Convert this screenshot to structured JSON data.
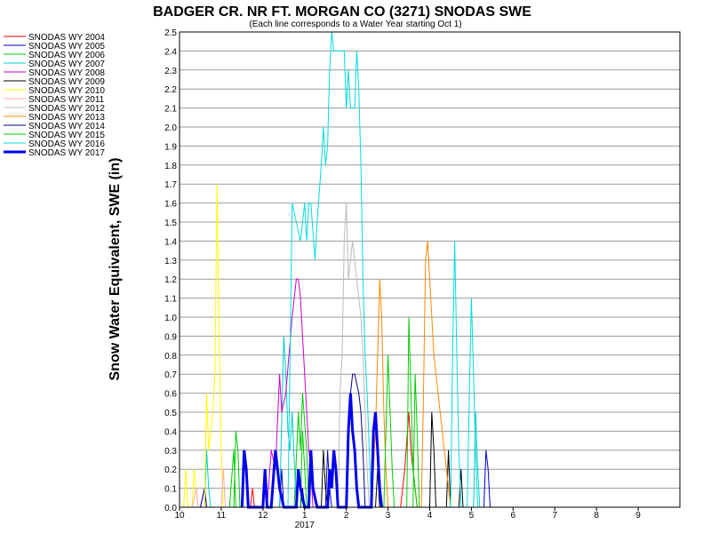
{
  "chart_data": {
    "type": "line",
    "title": "BADGER CR. NR FT. MORGAN CO (3271) SNODAS SWE",
    "subtitle": "(Each line corresponds to a Water Year starting Oct 1)",
    "xlabel": "",
    "ylabel": "Snow Water Equivalent, SWE (in)",
    "ylim": [
      0,
      2.5
    ],
    "yticks": [
      "0.0",
      "0.1",
      "0.2",
      "0.3",
      "0.4",
      "0.5",
      "0.6",
      "0.7",
      "0.8",
      "0.9",
      "1.0",
      "1.1",
      "1.2",
      "1.3",
      "1.4",
      "1.5",
      "1.6",
      "1.7",
      "1.8",
      "1.9",
      "2.0",
      "2.1",
      "2.2",
      "2.3",
      "2.4",
      "2.5"
    ],
    "xlim": [
      0,
      12
    ],
    "xticks": [
      {
        "x": 0,
        "label": "10"
      },
      {
        "x": 1,
        "label": "11"
      },
      {
        "x": 2,
        "label": "12"
      },
      {
        "x": 3,
        "label": "1"
      },
      {
        "x": 4,
        "label": "2"
      },
      {
        "x": 5,
        "label": "3"
      },
      {
        "x": 6,
        "label": "4"
      },
      {
        "x": 7,
        "label": "5"
      },
      {
        "x": 8,
        "label": "6"
      },
      {
        "x": 9,
        "label": "7"
      },
      {
        "x": 10,
        "label": "8"
      },
      {
        "x": 11,
        "label": "9"
      }
    ],
    "x_sublabel": {
      "x": 3,
      "label": "2017"
    },
    "grid": "horizontal",
    "legend_position": "left",
    "series": [
      {
        "name": "SNODAS WY 2004",
        "color": "#ff0000",
        "width": 1,
        "points": [
          [
            0.1,
            0
          ],
          [
            0.5,
            0
          ],
          [
            0.6,
            0.1
          ],
          [
            0.65,
            0
          ],
          [
            1.7,
            0
          ],
          [
            1.75,
            0.1
          ],
          [
            1.8,
            0
          ],
          [
            5.3,
            0
          ],
          [
            5.4,
            0.2
          ],
          [
            5.5,
            0.5
          ],
          [
            5.55,
            0.3
          ],
          [
            5.6,
            0.2
          ],
          [
            5.7,
            0
          ],
          [
            6,
            0
          ]
        ]
      },
      {
        "name": "SNODAS WY 2005",
        "color": "#0000cc",
        "width": 1,
        "points": [
          [
            0.5,
            0
          ],
          [
            0.6,
            0.1
          ],
          [
            0.65,
            0
          ],
          [
            2.4,
            0
          ],
          [
            2.45,
            0.2
          ],
          [
            2.5,
            0
          ],
          [
            3.5,
            0
          ],
          [
            3.55,
            0.3
          ],
          [
            3.6,
            0.1
          ],
          [
            3.65,
            0
          ],
          [
            7.3,
            0
          ],
          [
            7.35,
            0.3
          ],
          [
            7.4,
            0.2
          ],
          [
            7.45,
            0
          ]
        ]
      },
      {
        "name": "SNODAS WY 2006",
        "color": "#00cc00",
        "width": 1,
        "points": [
          [
            1.3,
            0
          ],
          [
            1.35,
            0.4
          ],
          [
            1.4,
            0.3
          ],
          [
            1.45,
            0
          ],
          [
            2.75,
            0
          ],
          [
            2.85,
            0.5
          ],
          [
            2.9,
            0.3
          ],
          [
            2.95,
            0.6
          ],
          [
            3.05,
            0.3
          ],
          [
            3.1,
            0
          ],
          [
            5.45,
            0
          ],
          [
            5.5,
            1
          ],
          [
            5.55,
            0.6
          ],
          [
            5.6,
            0.2
          ],
          [
            5.7,
            0
          ]
        ]
      },
      {
        "name": "SNODAS WY 2007",
        "color": "#00cccc",
        "width": 1,
        "points": [
          [
            0.6,
            0
          ],
          [
            0.65,
            0.3
          ],
          [
            0.7,
            0.1
          ],
          [
            0.75,
            0
          ],
          [
            2.4,
            0
          ],
          [
            2.5,
            0.9
          ],
          [
            2.55,
            0.7
          ],
          [
            2.6,
            0.4
          ],
          [
            2.65,
            0.3
          ],
          [
            2.7,
            0.5
          ],
          [
            2.8,
            0
          ],
          [
            7.05,
            0
          ],
          [
            7.1,
            0.5
          ],
          [
            7.15,
            0.2
          ],
          [
            7.2,
            0
          ]
        ]
      },
      {
        "name": "SNODAS WY 2008",
        "color": "#cc00cc",
        "width": 1,
        "points": [
          [
            2.1,
            0
          ],
          [
            2.2,
            0.3
          ],
          [
            2.3,
            0.2
          ],
          [
            2.4,
            0.7
          ],
          [
            2.45,
            0.5
          ],
          [
            2.55,
            0.6
          ],
          [
            2.7,
            1
          ],
          [
            2.8,
            1.2
          ],
          [
            2.85,
            1.2
          ],
          [
            2.9,
            1.1
          ],
          [
            2.95,
            0.9
          ],
          [
            3.0,
            0.7
          ],
          [
            3.05,
            0.5
          ],
          [
            3.1,
            0.3
          ],
          [
            3.15,
            0.2
          ],
          [
            3.2,
            0
          ]
        ]
      },
      {
        "name": "SNODAS WY 2009",
        "color": "#000000",
        "width": 1,
        "points": [
          [
            3.4,
            0
          ],
          [
            3.45,
            0.3
          ],
          [
            3.5,
            0.1
          ],
          [
            3.55,
            0
          ],
          [
            4.7,
            0
          ],
          [
            4.75,
            0.2
          ],
          [
            4.8,
            0
          ],
          [
            6.0,
            0
          ],
          [
            6.05,
            0.5
          ],
          [
            6.1,
            0.3
          ],
          [
            6.15,
            0
          ],
          [
            6.4,
            0
          ],
          [
            6.45,
            0.3
          ],
          [
            6.5,
            0
          ],
          [
            6.7,
            0
          ],
          [
            6.75,
            0.2
          ],
          [
            6.8,
            0
          ]
        ]
      },
      {
        "name": "SNODAS WY 2010",
        "color": "#ffff00",
        "width": 1,
        "points": [
          [
            0.1,
            0
          ],
          [
            0.15,
            0.2
          ],
          [
            0.2,
            0
          ],
          [
            0.3,
            0
          ],
          [
            0.35,
            0.2
          ],
          [
            0.45,
            0
          ],
          [
            0.6,
            0
          ],
          [
            0.65,
            0.6
          ],
          [
            0.7,
            0.3
          ],
          [
            0.8,
            0.5
          ],
          [
            0.85,
            0.7
          ],
          [
            0.9,
            1.7
          ],
          [
            0.95,
            0.9
          ],
          [
            1.0,
            0.3
          ],
          [
            1.05,
            0
          ]
        ]
      },
      {
        "name": "SNODAS WY 2011",
        "color": "#ffaaaa",
        "width": 1,
        "points": [
          [
            0.3,
            0
          ],
          [
            0.4,
            0.1
          ],
          [
            0.45,
            0
          ],
          [
            1.0,
            0
          ],
          [
            1.05,
            0.2
          ],
          [
            1.1,
            0
          ],
          [
            2.0,
            0
          ],
          [
            2.05,
            0.1
          ],
          [
            2.1,
            0
          ]
        ]
      },
      {
        "name": "SNODAS WY 2012",
        "color": "#bbbbbb",
        "width": 1,
        "points": [
          [
            3.8,
            0
          ],
          [
            3.85,
            0.6
          ],
          [
            3.9,
            0.8
          ],
          [
            3.95,
            1.4
          ],
          [
            4.0,
            1.6
          ],
          [
            4.05,
            1.2
          ],
          [
            4.1,
            1.3
          ],
          [
            4.15,
            1.4
          ],
          [
            4.2,
            1.3
          ],
          [
            4.3,
            1.1
          ],
          [
            4.35,
            1.0
          ],
          [
            4.4,
            0.8
          ],
          [
            4.45,
            0.5
          ],
          [
            4.5,
            0.2
          ],
          [
            4.55,
            0
          ]
        ]
      },
      {
        "name": "SNODAS WY 2013",
        "color": "#ff8800",
        "width": 1,
        "points": [
          [
            4.6,
            0
          ],
          [
            4.7,
            0.4
          ],
          [
            4.75,
            0.8
          ],
          [
            4.8,
            1.2
          ],
          [
            4.85,
            1.0
          ],
          [
            4.9,
            0.5
          ],
          [
            4.95,
            0.2
          ],
          [
            5.0,
            0
          ],
          [
            5.8,
            0
          ],
          [
            5.85,
            0.6
          ],
          [
            5.9,
            1.3
          ],
          [
            5.95,
            1.4
          ],
          [
            6.0,
            1.2
          ],
          [
            6.1,
            0.8
          ],
          [
            6.2,
            0.6
          ],
          [
            6.3,
            0.4
          ],
          [
            6.4,
            0.2
          ],
          [
            6.5,
            0
          ]
        ]
      },
      {
        "name": "SNODAS WY 2014",
        "color": "#000088",
        "width": 1,
        "points": [
          [
            2.9,
            0
          ],
          [
            2.95,
            0.1
          ],
          [
            3.0,
            0
          ],
          [
            4.0,
            0
          ],
          [
            4.05,
            0.3
          ],
          [
            4.1,
            0.6
          ],
          [
            4.15,
            0.7
          ],
          [
            4.2,
            0.7
          ],
          [
            4.3,
            0.6
          ],
          [
            4.35,
            0.5
          ],
          [
            4.4,
            0.3
          ],
          [
            4.45,
            0
          ]
        ]
      },
      {
        "name": "SNODAS WY 2015",
        "color": "#00cc00",
        "width": 1,
        "points": [
          [
            1.2,
            0
          ],
          [
            1.3,
            0.3
          ],
          [
            1.35,
            0
          ],
          [
            2.0,
            0
          ],
          [
            2.05,
            0.1
          ],
          [
            2.1,
            0
          ],
          [
            2.9,
            0
          ],
          [
            2.95,
            0.4
          ],
          [
            3.0,
            0.2
          ],
          [
            3.05,
            0
          ],
          [
            4.9,
            0
          ],
          [
            4.95,
            0.4
          ],
          [
            5.0,
            0.8
          ],
          [
            5.05,
            0.5
          ],
          [
            5.1,
            0.2
          ],
          [
            5.15,
            0
          ],
          [
            5.6,
            0
          ],
          [
            5.65,
            0.7
          ],
          [
            5.7,
            0.4
          ],
          [
            5.75,
            0
          ]
        ]
      },
      {
        "name": "SNODAS WY 2016",
        "color": "#00dddd",
        "width": 1,
        "points": [
          [
            2.6,
            0
          ],
          [
            2.7,
            1.6
          ],
          [
            2.8,
            1.5
          ],
          [
            2.9,
            1.4
          ],
          [
            3.0,
            1.6
          ],
          [
            3.05,
            1.4
          ],
          [
            3.1,
            1.6
          ],
          [
            3.15,
            1.6
          ],
          [
            3.25,
            1.3
          ],
          [
            3.3,
            1.5
          ],
          [
            3.4,
            1.8
          ],
          [
            3.45,
            2.0
          ],
          [
            3.5,
            1.8
          ],
          [
            3.55,
            1.9
          ],
          [
            3.6,
            2.3
          ],
          [
            3.65,
            2.5
          ],
          [
            3.7,
            2.4
          ],
          [
            3.85,
            2.4
          ],
          [
            3.95,
            2.4
          ],
          [
            4.0,
            2.1
          ],
          [
            4.05,
            2.3
          ],
          [
            4.1,
            2.1
          ],
          [
            4.2,
            2.1
          ],
          [
            4.25,
            2.4
          ],
          [
            4.3,
            2.2
          ],
          [
            4.35,
            1.8
          ],
          [
            4.4,
            1.2
          ],
          [
            4.45,
            0.8
          ],
          [
            4.5,
            0.6
          ],
          [
            4.55,
            0.3
          ],
          [
            4.6,
            0
          ],
          [
            6.5,
            0
          ],
          [
            6.55,
            0.8
          ],
          [
            6.6,
            1.4
          ],
          [
            6.65,
            0.8
          ],
          [
            6.7,
            0.3
          ],
          [
            6.75,
            0
          ],
          [
            6.9,
            0
          ],
          [
            6.95,
            0.6
          ],
          [
            7.0,
            1.1
          ],
          [
            7.05,
            0.7
          ],
          [
            7.1,
            0.3
          ],
          [
            7.15,
            0
          ]
        ]
      },
      {
        "name": "SNODAS WY 2017",
        "color": "#0000ee",
        "width": 3,
        "points": [
          [
            1.5,
            0
          ],
          [
            1.55,
            0.3
          ],
          [
            1.6,
            0.2
          ],
          [
            1.65,
            0
          ],
          [
            2.0,
            0
          ],
          [
            2.05,
            0.2
          ],
          [
            2.1,
            0
          ],
          [
            2.2,
            0
          ],
          [
            2.3,
            0.3
          ],
          [
            2.35,
            0.2
          ],
          [
            2.4,
            0.1
          ],
          [
            2.5,
            0
          ],
          [
            2.8,
            0
          ],
          [
            2.85,
            0.2
          ],
          [
            2.9,
            0.1
          ],
          [
            3.0,
            0
          ],
          [
            3.1,
            0
          ],
          [
            3.15,
            0.3
          ],
          [
            3.2,
            0.1
          ],
          [
            3.3,
            0
          ],
          [
            3.55,
            0
          ],
          [
            3.6,
            0.2
          ],
          [
            3.65,
            0.1
          ],
          [
            3.7,
            0.3
          ],
          [
            3.75,
            0.2
          ],
          [
            3.8,
            0
          ],
          [
            4.0,
            0
          ],
          [
            4.05,
            0.4
          ],
          [
            4.1,
            0.6
          ],
          [
            4.15,
            0.4
          ],
          [
            4.2,
            0.3
          ],
          [
            4.25,
            0.1
          ],
          [
            4.3,
            0
          ],
          [
            4.6,
            0
          ],
          [
            4.65,
            0.4
          ],
          [
            4.7,
            0.5
          ],
          [
            4.75,
            0.3
          ],
          [
            4.8,
            0.1
          ],
          [
            4.85,
            0
          ]
        ]
      }
    ]
  }
}
